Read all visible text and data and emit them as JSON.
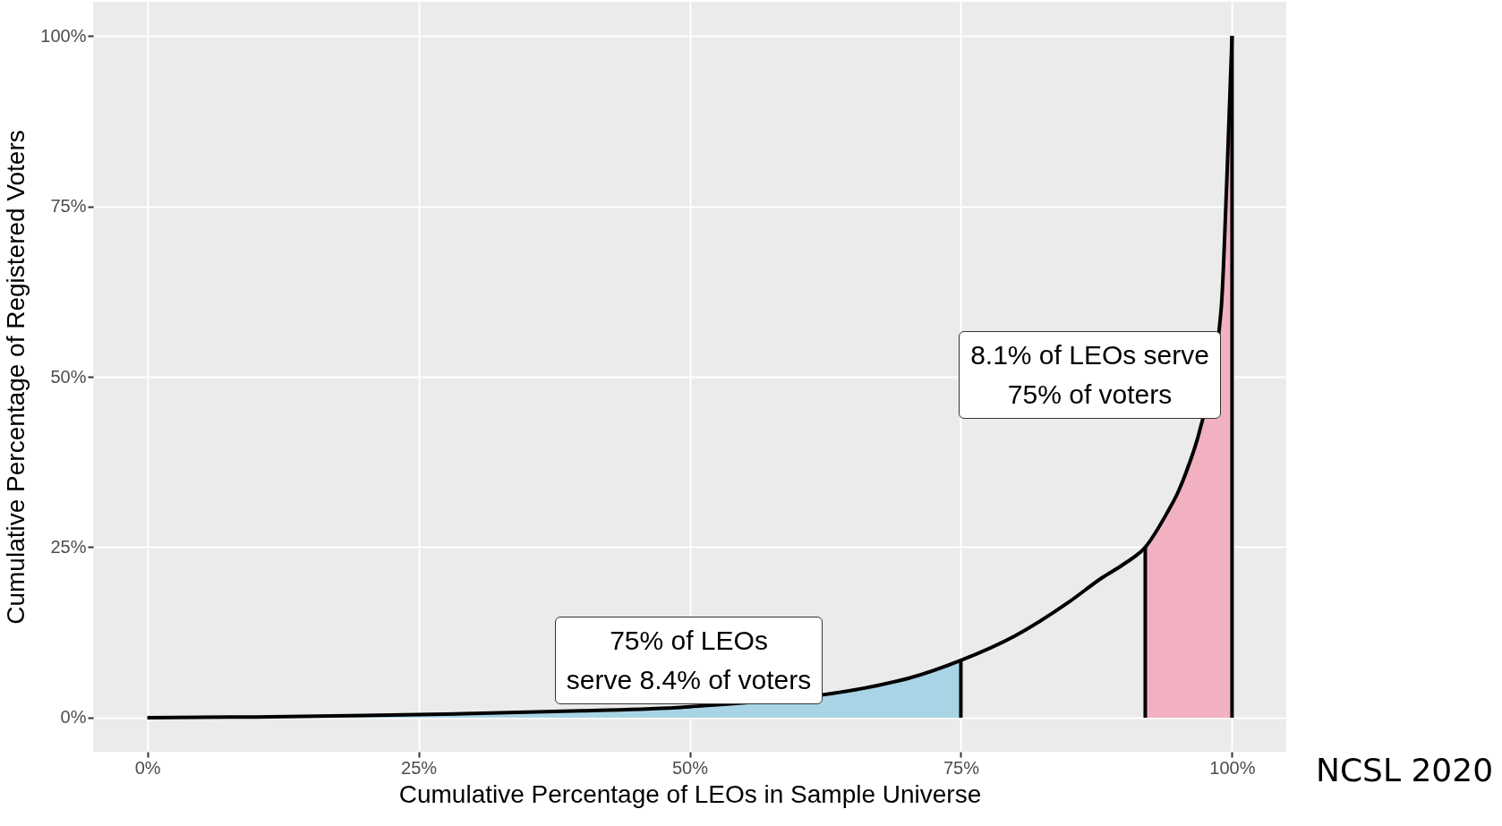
{
  "chart_data": {
    "type": "line",
    "xlabel": "Cumulative Percentage of LEOs in Sample Universe",
    "ylabel": "Cumulative Percentage of Registered Voters",
    "xlim": [
      -5,
      105
    ],
    "ylim": [
      -5,
      105
    ],
    "xticks": [
      {
        "value": 0,
        "label": "0%"
      },
      {
        "value": 25,
        "label": "25%"
      },
      {
        "value": 50,
        "label": "50%"
      },
      {
        "value": 75,
        "label": "75%"
      },
      {
        "value": 100,
        "label": "100%"
      }
    ],
    "yticks": [
      {
        "value": 0,
        "label": "0%"
      },
      {
        "value": 25,
        "label": "25%"
      },
      {
        "value": 50,
        "label": "50%"
      },
      {
        "value": 75,
        "label": "75%"
      },
      {
        "value": 100,
        "label": "100%"
      }
    ],
    "grid": true,
    "marker": "none",
    "line_style": "solid",
    "series": [
      {
        "type": "area",
        "color": "#a9d4e6",
        "x": [
          0,
          10,
          20,
          30,
          40,
          50,
          70,
          75
        ],
        "values": [
          0,
          0.1,
          0.3,
          0.6,
          1.0,
          1.6,
          5.7,
          8.4
        ]
      },
      {
        "type": "area",
        "color": "#f2b1c0",
        "x": [
          92,
          94,
          95,
          96,
          97,
          99,
          99.5,
          100
        ],
        "values": [
          25,
          30,
          33,
          37,
          42,
          60,
          78,
          100
        ]
      },
      {
        "color": "#000000",
        "x": [
          0,
          10,
          20,
          30,
          40,
          50,
          70,
          75,
          80,
          85,
          88,
          90,
          92,
          94,
          95,
          96,
          97,
          99,
          99.5,
          100
        ],
        "values": [
          0,
          0.1,
          0.3,
          0.6,
          1.0,
          1.6,
          5.7,
          8.4,
          12,
          17,
          20.5,
          22.5,
          25,
          30,
          33,
          37,
          42,
          60,
          78,
          100
        ]
      },
      {
        "color": "#000000",
        "x": [
          75,
          75
        ],
        "values": [
          0,
          8.4
        ]
      },
      {
        "color": "#000000",
        "x": [
          92,
          92
        ],
        "values": [
          0,
          25
        ]
      },
      {
        "color": "#000000",
        "x": [
          100,
          100
        ],
        "values": [
          0,
          100
        ]
      }
    ],
    "annotations": [
      "75% of LEOs\nserve 8.4% of voters",
      "8.1% of LEOs serve\n75% of voters",
      "NCSL 2020"
    ]
  }
}
